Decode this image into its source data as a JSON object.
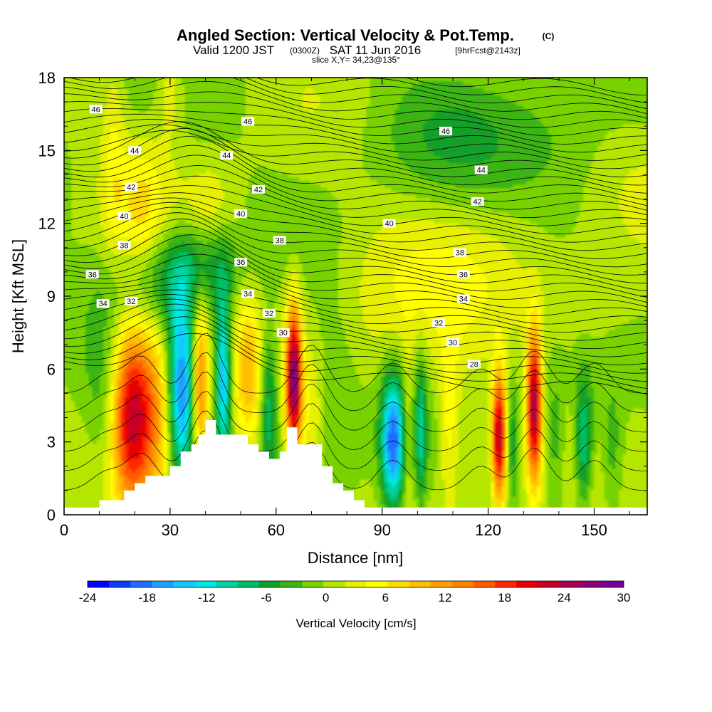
{
  "title": {
    "main": "Angled Section: Vertical Velocity & Pot.Temp.",
    "main_suffix": "(C)",
    "valid_a": "Valid 1200 JST",
    "valid_b": "(0300Z)",
    "valid_c": "SAT 11 Jun 2016",
    "valid_d": "[9hrFcst@2143z]",
    "slice": "slice X,Y= 34,23@135°"
  },
  "chart_data": {
    "type": "heatmap",
    "xlabel": "Distance [nm]",
    "ylabel": "Height [Kft MSL]",
    "xlim": [
      0,
      165
    ],
    "ylim": [
      0,
      18
    ],
    "x_ticks": [
      "0",
      "30",
      "60",
      "90",
      "120",
      "150"
    ],
    "x_tick_values": [
      0,
      30,
      60,
      90,
      120,
      150
    ],
    "y_ticks": [
      "0",
      "3",
      "6",
      "9",
      "12",
      "15",
      "18"
    ],
    "y_tick_values": [
      0,
      3,
      6,
      9,
      12,
      15,
      18
    ],
    "colorbar": {
      "label": "Vertical Velocity [cm/s]",
      "ticks": [
        "-24",
        "-18",
        "-12",
        "-6",
        "0",
        "6",
        "12",
        "18",
        "24",
        "30"
      ],
      "range": [
        -24,
        30
      ],
      "colors": [
        "#0000ff",
        "#0a3cff",
        "#1e6eff",
        "#1ea0ff",
        "#12c8ff",
        "#00e6e6",
        "#00d2a0",
        "#00be64",
        "#14a028",
        "#3cb414",
        "#78d200",
        "#b4e600",
        "#e6f000",
        "#ffff00",
        "#ffdc00",
        "#ffbe00",
        "#ffa000",
        "#ff8200",
        "#ff5a00",
        "#ff2800",
        "#e60000",
        "#c80028",
        "#aa0050",
        "#8c0078",
        "#780096"
      ]
    },
    "terrain": {
      "x_nm": [
        0,
        10,
        10,
        17,
        17,
        20,
        20,
        23,
        23,
        30,
        30,
        33,
        33,
        36,
        36,
        38,
        38,
        40,
        40,
        43,
        43,
        52,
        52,
        55,
        55,
        58,
        58,
        61,
        61,
        63,
        63,
        66,
        66,
        73,
        73,
        76,
        76,
        79,
        79,
        82,
        82,
        85,
        85,
        88,
        88,
        165
      ],
      "height_kft": [
        0.3,
        0.3,
        0.6,
        0.6,
        1.0,
        1.0,
        1.3,
        1.3,
        1.6,
        1.6,
        2.0,
        2.0,
        2.6,
        2.6,
        2.9,
        2.9,
        3.3,
        3.3,
        3.9,
        3.9,
        3.3,
        3.3,
        2.9,
        2.9,
        2.6,
        2.6,
        2.3,
        2.3,
        2.6,
        2.6,
        3.6,
        3.6,
        2.9,
        2.9,
        2.0,
        2.0,
        1.3,
        1.3,
        1.0,
        1.0,
        0.6,
        0.6,
        0.3,
        0.3,
        0.3,
        0.3
      ]
    },
    "background_value": 0,
    "cells": [
      {
        "x": 22,
        "z": 4.6,
        "sx": 6,
        "sz": 2.8,
        "v": 17
      },
      {
        "x": 18,
        "z": 4.0,
        "sx": 3.5,
        "sz": 2.5,
        "v": 10
      },
      {
        "x": 33,
        "z": 5.0,
        "sx": 2.6,
        "sz": 2.6,
        "v": -19
      },
      {
        "x": 38.5,
        "z": 5.5,
        "sx": 1.6,
        "sz": 2.4,
        "v": 14
      },
      {
        "x": 45,
        "z": 5.5,
        "sx": 1.5,
        "sz": 2.6,
        "v": -15
      },
      {
        "x": 52,
        "z": 6.0,
        "sx": 2.5,
        "sz": 2.2,
        "v": 8
      },
      {
        "x": 58,
        "z": 4.5,
        "sx": 1.8,
        "sz": 2.2,
        "v": -10
      },
      {
        "x": 65,
        "z": 5.6,
        "sx": 1.5,
        "sz": 2.1,
        "v": 26
      },
      {
        "x": 70,
        "z": 4.0,
        "sx": 2.5,
        "sz": 2.0,
        "v": 4
      },
      {
        "x": 93,
        "z": 3.0,
        "sx": 2.3,
        "sz": 1.9,
        "v": -18
      },
      {
        "x": 97,
        "z": 3.5,
        "sx": 1.0,
        "sz": 2.2,
        "v": 5
      },
      {
        "x": 101,
        "z": 3.5,
        "sx": 1.0,
        "sz": 2.2,
        "v": -8
      },
      {
        "x": 109,
        "z": 3.8,
        "sx": 2.5,
        "sz": 2.4,
        "v": 7
      },
      {
        "x": 116,
        "z": 3.0,
        "sx": 2.0,
        "sz": 2.0,
        "v": 3
      },
      {
        "x": 123,
        "z": 3.2,
        "sx": 1.4,
        "sz": 1.9,
        "v": 24
      },
      {
        "x": 127,
        "z": 3.0,
        "sx": 1.0,
        "sz": 1.8,
        "v": -6
      },
      {
        "x": 133,
        "z": 4.5,
        "sx": 1.5,
        "sz": 2.2,
        "v": 24
      },
      {
        "x": 139,
        "z": 3.0,
        "sx": 2.0,
        "sz": 2.0,
        "v": -5
      },
      {
        "x": 147,
        "z": 3.0,
        "sx": 1.8,
        "sz": 1.8,
        "v": -11
      },
      {
        "x": 155,
        "z": 2.5,
        "sx": 2.5,
        "sz": 1.8,
        "v": -5
      },
      {
        "x": 12,
        "z": 4.0,
        "sx": 4,
        "sz": 3,
        "v": -5
      },
      {
        "x": 28,
        "z": 9.5,
        "sx": 10,
        "sz": 1.5,
        "v": -7
      },
      {
        "x": 40,
        "z": 10.5,
        "sx": 8,
        "sz": 1.2,
        "v": -5
      },
      {
        "x": 75,
        "z": 5.5,
        "sx": 6,
        "sz": 3.0,
        "v": -4
      },
      {
        "x": 22,
        "z": 12.5,
        "sx": 4,
        "sz": 2.0,
        "v": 5
      },
      {
        "x": 14,
        "z": 14.5,
        "sx": 2.5,
        "sz": 3.5,
        "v": 4
      },
      {
        "x": 30,
        "z": 17.5,
        "sx": 3,
        "sz": 1.5,
        "v": 5
      },
      {
        "x": 42,
        "z": 12.5,
        "sx": 5,
        "sz": 1.5,
        "v": 3
      },
      {
        "x": 130,
        "z": 11.5,
        "sx": 30,
        "sz": 3.0,
        "v": 2
      },
      {
        "x": 105,
        "z": 15.5,
        "sx": 20,
        "sz": 2.0,
        "v": -4
      },
      {
        "x": 145,
        "z": 13.5,
        "sx": 12,
        "sz": 3.0,
        "v": -3
      },
      {
        "x": 150,
        "z": 8.5,
        "sx": 10,
        "sz": 1.5,
        "v": 3
      },
      {
        "x": 85,
        "z": 9.0,
        "sx": 20,
        "sz": 2.5,
        "v": 3
      }
    ],
    "theta_contour_labels": [
      {
        "x": 9,
        "z": 16.7,
        "label": "46"
      },
      {
        "x": 52,
        "z": 16.2,
        "label": "46"
      },
      {
        "x": 108,
        "z": 15.8,
        "label": "46"
      },
      {
        "x": 20,
        "z": 15.0,
        "label": "44"
      },
      {
        "x": 46,
        "z": 14.8,
        "label": "44"
      },
      {
        "x": 118,
        "z": 14.2,
        "label": "44"
      },
      {
        "x": 19,
        "z": 13.5,
        "label": "42"
      },
      {
        "x": 55,
        "z": 13.4,
        "label": "42"
      },
      {
        "x": 117,
        "z": 12.9,
        "label": "42"
      },
      {
        "x": 17,
        "z": 12.3,
        "label": "40"
      },
      {
        "x": 50,
        "z": 12.4,
        "label": "40"
      },
      {
        "x": 92,
        "z": 12.0,
        "label": "40"
      },
      {
        "x": 17,
        "z": 11.1,
        "label": "38"
      },
      {
        "x": 61,
        "z": 11.3,
        "label": "38"
      },
      {
        "x": 112,
        "z": 10.8,
        "label": "38"
      },
      {
        "x": 8,
        "z": 9.9,
        "label": "36"
      },
      {
        "x": 50,
        "z": 10.4,
        "label": "36"
      },
      {
        "x": 113,
        "z": 9.9,
        "label": "36"
      },
      {
        "x": 11,
        "z": 8.7,
        "label": "34"
      },
      {
        "x": 52,
        "z": 9.1,
        "label": "34"
      },
      {
        "x": 113,
        "z": 8.9,
        "label": "34"
      },
      {
        "x": 19,
        "z": 8.8,
        "label": "32"
      },
      {
        "x": 58,
        "z": 8.3,
        "label": "32"
      },
      {
        "x": 106,
        "z": 7.9,
        "label": "32"
      },
      {
        "x": 62,
        "z": 7.5,
        "label": "30"
      },
      {
        "x": 110,
        "z": 7.1,
        "label": "30"
      },
      {
        "x": 116,
        "z": 6.2,
        "label": "28"
      }
    ]
  }
}
